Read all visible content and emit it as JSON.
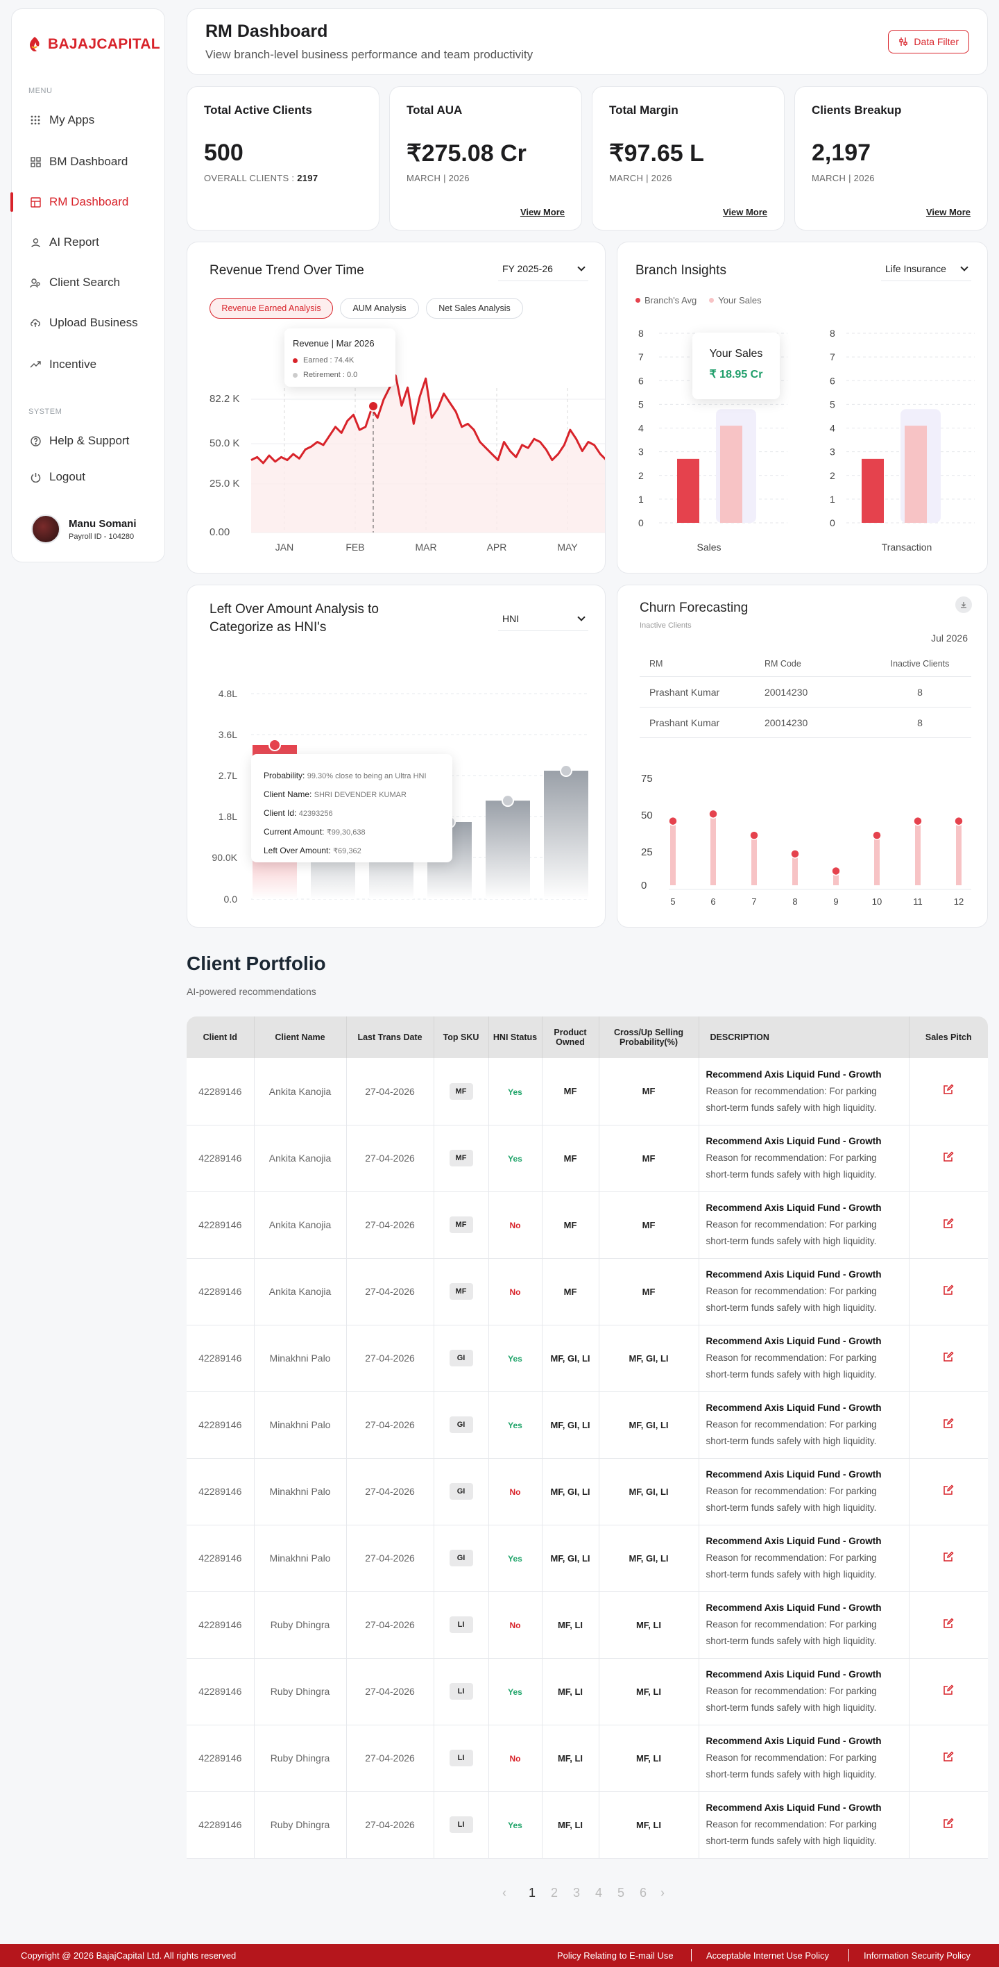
{
  "brand": {
    "name": "BAJAJCAPITAL",
    "accent": "#d8232a"
  },
  "sidebar": {
    "menu_label": "MENU",
    "system_label": "SYSTEM",
    "items": [
      {
        "label": "My Apps",
        "icon": "grid-dots-icon"
      },
      {
        "label": "BM Dashboard",
        "icon": "dashboard-icon"
      },
      {
        "label": "RM Dashboard",
        "icon": "dashboard-icon",
        "active": true
      },
      {
        "label": "AI Report",
        "icon": "ai-person-icon"
      },
      {
        "label": "Client Search",
        "icon": "people-search-icon"
      },
      {
        "label": "Upload Business",
        "icon": "cloud-upload-icon"
      },
      {
        "label": "Incentive",
        "icon": "trend-icon"
      }
    ],
    "system_items": [
      {
        "label": "Help & Support",
        "icon": "help-icon"
      },
      {
        "label": "Logout",
        "icon": "power-icon"
      }
    ],
    "user": {
      "name": "Manu Somani",
      "id": "Payroll ID - 104280"
    }
  },
  "header": {
    "title": "RM Dashboard",
    "subtitle": "View branch-level business performance and team productivity",
    "filter_label": "Data Filter"
  },
  "stats": [
    {
      "title": "Total Active Clients",
      "value": "500",
      "sub_label": "OVERALL CLIENTS : ",
      "sub_value": "2197",
      "more": ""
    },
    {
      "title": "Total AUA",
      "value": "₹275.08 Cr",
      "sub_label": "MARCH | 2026",
      "sub_value": "",
      "more": "View More"
    },
    {
      "title": "Total Margin",
      "value": "₹97.65 L",
      "sub_label": "MARCH | 2026",
      "sub_value": "",
      "more": "View More"
    },
    {
      "title": "Clients Breakup",
      "value": "2,197",
      "sub_label": "MARCH | 2026",
      "sub_value": "",
      "more": "View More"
    }
  ],
  "revenue": {
    "title": "Revenue Trend Over Time",
    "select": "FY 2025-26",
    "chips": [
      "Revenue Earned Analysis",
      "AUM Analysis",
      "Net Sales Analysis"
    ],
    "tooltip": {
      "title": "Revenue | Mar 2026",
      "earned": "Earned : 74.4K",
      "retirement": "Retirement : 0.0"
    }
  },
  "branch": {
    "title": "Branch Insights",
    "select": "Life Insurance",
    "legend": [
      "Branch's Avg",
      "Your Sales"
    ],
    "tooltip": {
      "title": "Your Sales",
      "value": "₹ 18.95 Cr"
    }
  },
  "hni": {
    "title": "Left Over Amount Analysis to Categorize as HNI's",
    "select": "HNI",
    "tooltip": [
      {
        "k": "Probability:",
        "v": "99.30% close to being an Ultra HNI"
      },
      {
        "k": "Client Name:",
        "v": "SHRI DEVENDER KUMAR"
      },
      {
        "k": "Client Id:",
        "v": "42393256"
      },
      {
        "k": "Current Amount:",
        "v": "₹99,30,638"
      },
      {
        "k": "Left Over Amount:",
        "v": "₹69,362"
      }
    ]
  },
  "churn": {
    "title": "Churn Forecasting",
    "subtitle": "Inactive Clients",
    "date": "Jul 2026",
    "columns": [
      "RM",
      "RM Code",
      "Inactive Clients"
    ],
    "rows": [
      [
        "Prashant Kumar",
        "20014230",
        "8"
      ],
      [
        "Prashant Kumar",
        "20014230",
        "8"
      ]
    ]
  },
  "chart_data": [
    {
      "type": "line",
      "title": "Revenue Trend Over Time",
      "x_ticks": [
        "JAN",
        "FEB",
        "MAR",
        "APR",
        "MAY"
      ],
      "y_ticks": [
        "0.00",
        "25.0 K",
        "50.0 K",
        "82.2 K"
      ],
      "series": [
        {
          "name": "Earned",
          "values": [
            48,
            50,
            46,
            51,
            47,
            50,
            48,
            52,
            49,
            55,
            57,
            60,
            58,
            64,
            70,
            66,
            74,
            78,
            68,
            70,
            82,
            76,
            88,
            96,
            104,
            84,
            96,
            72,
            90,
            102,
            76,
            82,
            92,
            86,
            80,
            70,
            72,
            68,
            60,
            56,
            52,
            48,
            60,
            54,
            50,
            58,
            56,
            62,
            60,
            55,
            48,
            52,
            58,
            68,
            62,
            54,
            60,
            58,
            52,
            48
          ]
        }
      ],
      "highlight": {
        "x": "Mar 2026",
        "earned": 74.4,
        "retirement": 0.0
      }
    },
    {
      "type": "bar",
      "title": "Sales",
      "categories": [
        "Branch's Avg",
        "Your Sales"
      ],
      "values": [
        2.7,
        4.1
      ],
      "ylim": [
        0,
        8
      ]
    },
    {
      "type": "bar",
      "title": "Transaction",
      "categories": [
        "Branch's Avg",
        "Your Sales"
      ],
      "values": [
        2.7,
        4.1
      ],
      "ylim": [
        0,
        8
      ]
    },
    {
      "type": "bar",
      "title": "Left Over Amount Analysis to Categorize as HNI's",
      "y_ticks": [
        "0.0",
        "90.0K",
        "1.8L",
        "2.7L",
        "3.6L",
        "4.8L"
      ],
      "values": [
        3.6,
        2.2,
        2.2,
        1.8,
        2.3,
        3.0
      ]
    },
    {
      "type": "bar",
      "title": "Churn Forecasting",
      "categories": [
        "5",
        "6",
        "7",
        "8",
        "9",
        "10",
        "11",
        "12"
      ],
      "values": [
        45,
        50,
        35,
        22,
        10,
        35,
        45,
        45
      ],
      "ylim": [
        0,
        75
      ],
      "y_ticks": [
        "0",
        "25",
        "50",
        "75"
      ]
    }
  ],
  "portfolio": {
    "title": "Client Portfolio",
    "subtitle": "AI-powered recommendations",
    "columns": [
      "Client Id",
      "Client Name",
      "Last Trans Date",
      "Top SKU",
      "HNI Status",
      "Product Owned",
      "Cross/Up Selling Probability(%)",
      "DESCRIPTION",
      "Sales Pitch"
    ],
    "rec_title": "Recommend Axis Liquid Fund - Growth",
    "rec_reason": "Reason for recommendation: For parking short-term funds safely with high liquidity.",
    "rows": [
      {
        "id": "42289146",
        "name": "Ankita Kanojia",
        "date": "27-04-2026",
        "sku": "MF",
        "hni": "Yes",
        "owned": "MF",
        "cross": "MF"
      },
      {
        "id": "42289146",
        "name": "Ankita Kanojia",
        "date": "27-04-2026",
        "sku": "MF",
        "hni": "Yes",
        "owned": "MF",
        "cross": "MF"
      },
      {
        "id": "42289146",
        "name": "Ankita Kanojia",
        "date": "27-04-2026",
        "sku": "MF",
        "hni": "No",
        "owned": "MF",
        "cross": "MF"
      },
      {
        "id": "42289146",
        "name": "Ankita Kanojia",
        "date": "27-04-2026",
        "sku": "MF",
        "hni": "No",
        "owned": "MF",
        "cross": "MF"
      },
      {
        "id": "42289146",
        "name": "Minakhni Palo",
        "date": "27-04-2026",
        "sku": "GI",
        "hni": "Yes",
        "owned": "MF, GI, LI",
        "cross": "MF, GI, LI"
      },
      {
        "id": "42289146",
        "name": "Minakhni Palo",
        "date": "27-04-2026",
        "sku": "GI",
        "hni": "Yes",
        "owned": "MF, GI, LI",
        "cross": "MF, GI, LI"
      },
      {
        "id": "42289146",
        "name": "Minakhni Palo",
        "date": "27-04-2026",
        "sku": "GI",
        "hni": "No",
        "owned": "MF, GI, LI",
        "cross": "MF, GI, LI"
      },
      {
        "id": "42289146",
        "name": "Minakhni Palo",
        "date": "27-04-2026",
        "sku": "GI",
        "hni": "Yes",
        "owned": "MF, GI, LI",
        "cross": "MF, GI, LI"
      },
      {
        "id": "42289146",
        "name": "Ruby Dhingra",
        "date": "27-04-2026",
        "sku": "LI",
        "hni": "No",
        "owned": "MF, LI",
        "cross": "MF, LI"
      },
      {
        "id": "42289146",
        "name": "Ruby Dhingra",
        "date": "27-04-2026",
        "sku": "LI",
        "hni": "Yes",
        "owned": "MF, LI",
        "cross": "MF, LI"
      },
      {
        "id": "42289146",
        "name": "Ruby Dhingra",
        "date": "27-04-2026",
        "sku": "LI",
        "hni": "No",
        "owned": "MF, LI",
        "cross": "MF, LI"
      },
      {
        "id": "42289146",
        "name": "Ruby Dhingra",
        "date": "27-04-2026",
        "sku": "LI",
        "hni": "Yes",
        "owned": "MF, LI",
        "cross": "MF, LI"
      }
    ]
  },
  "pagination": {
    "pages": [
      "1",
      "2",
      "3",
      "4",
      "5",
      "6"
    ],
    "current": "1"
  },
  "footer": {
    "copyright": "Copyright @ 2026 BajajCapital Ltd. All rights reserved",
    "links": [
      "Policy Relating to E-mail Use",
      "Acceptable Internet Use Policy",
      "Information Security Policy"
    ]
  }
}
